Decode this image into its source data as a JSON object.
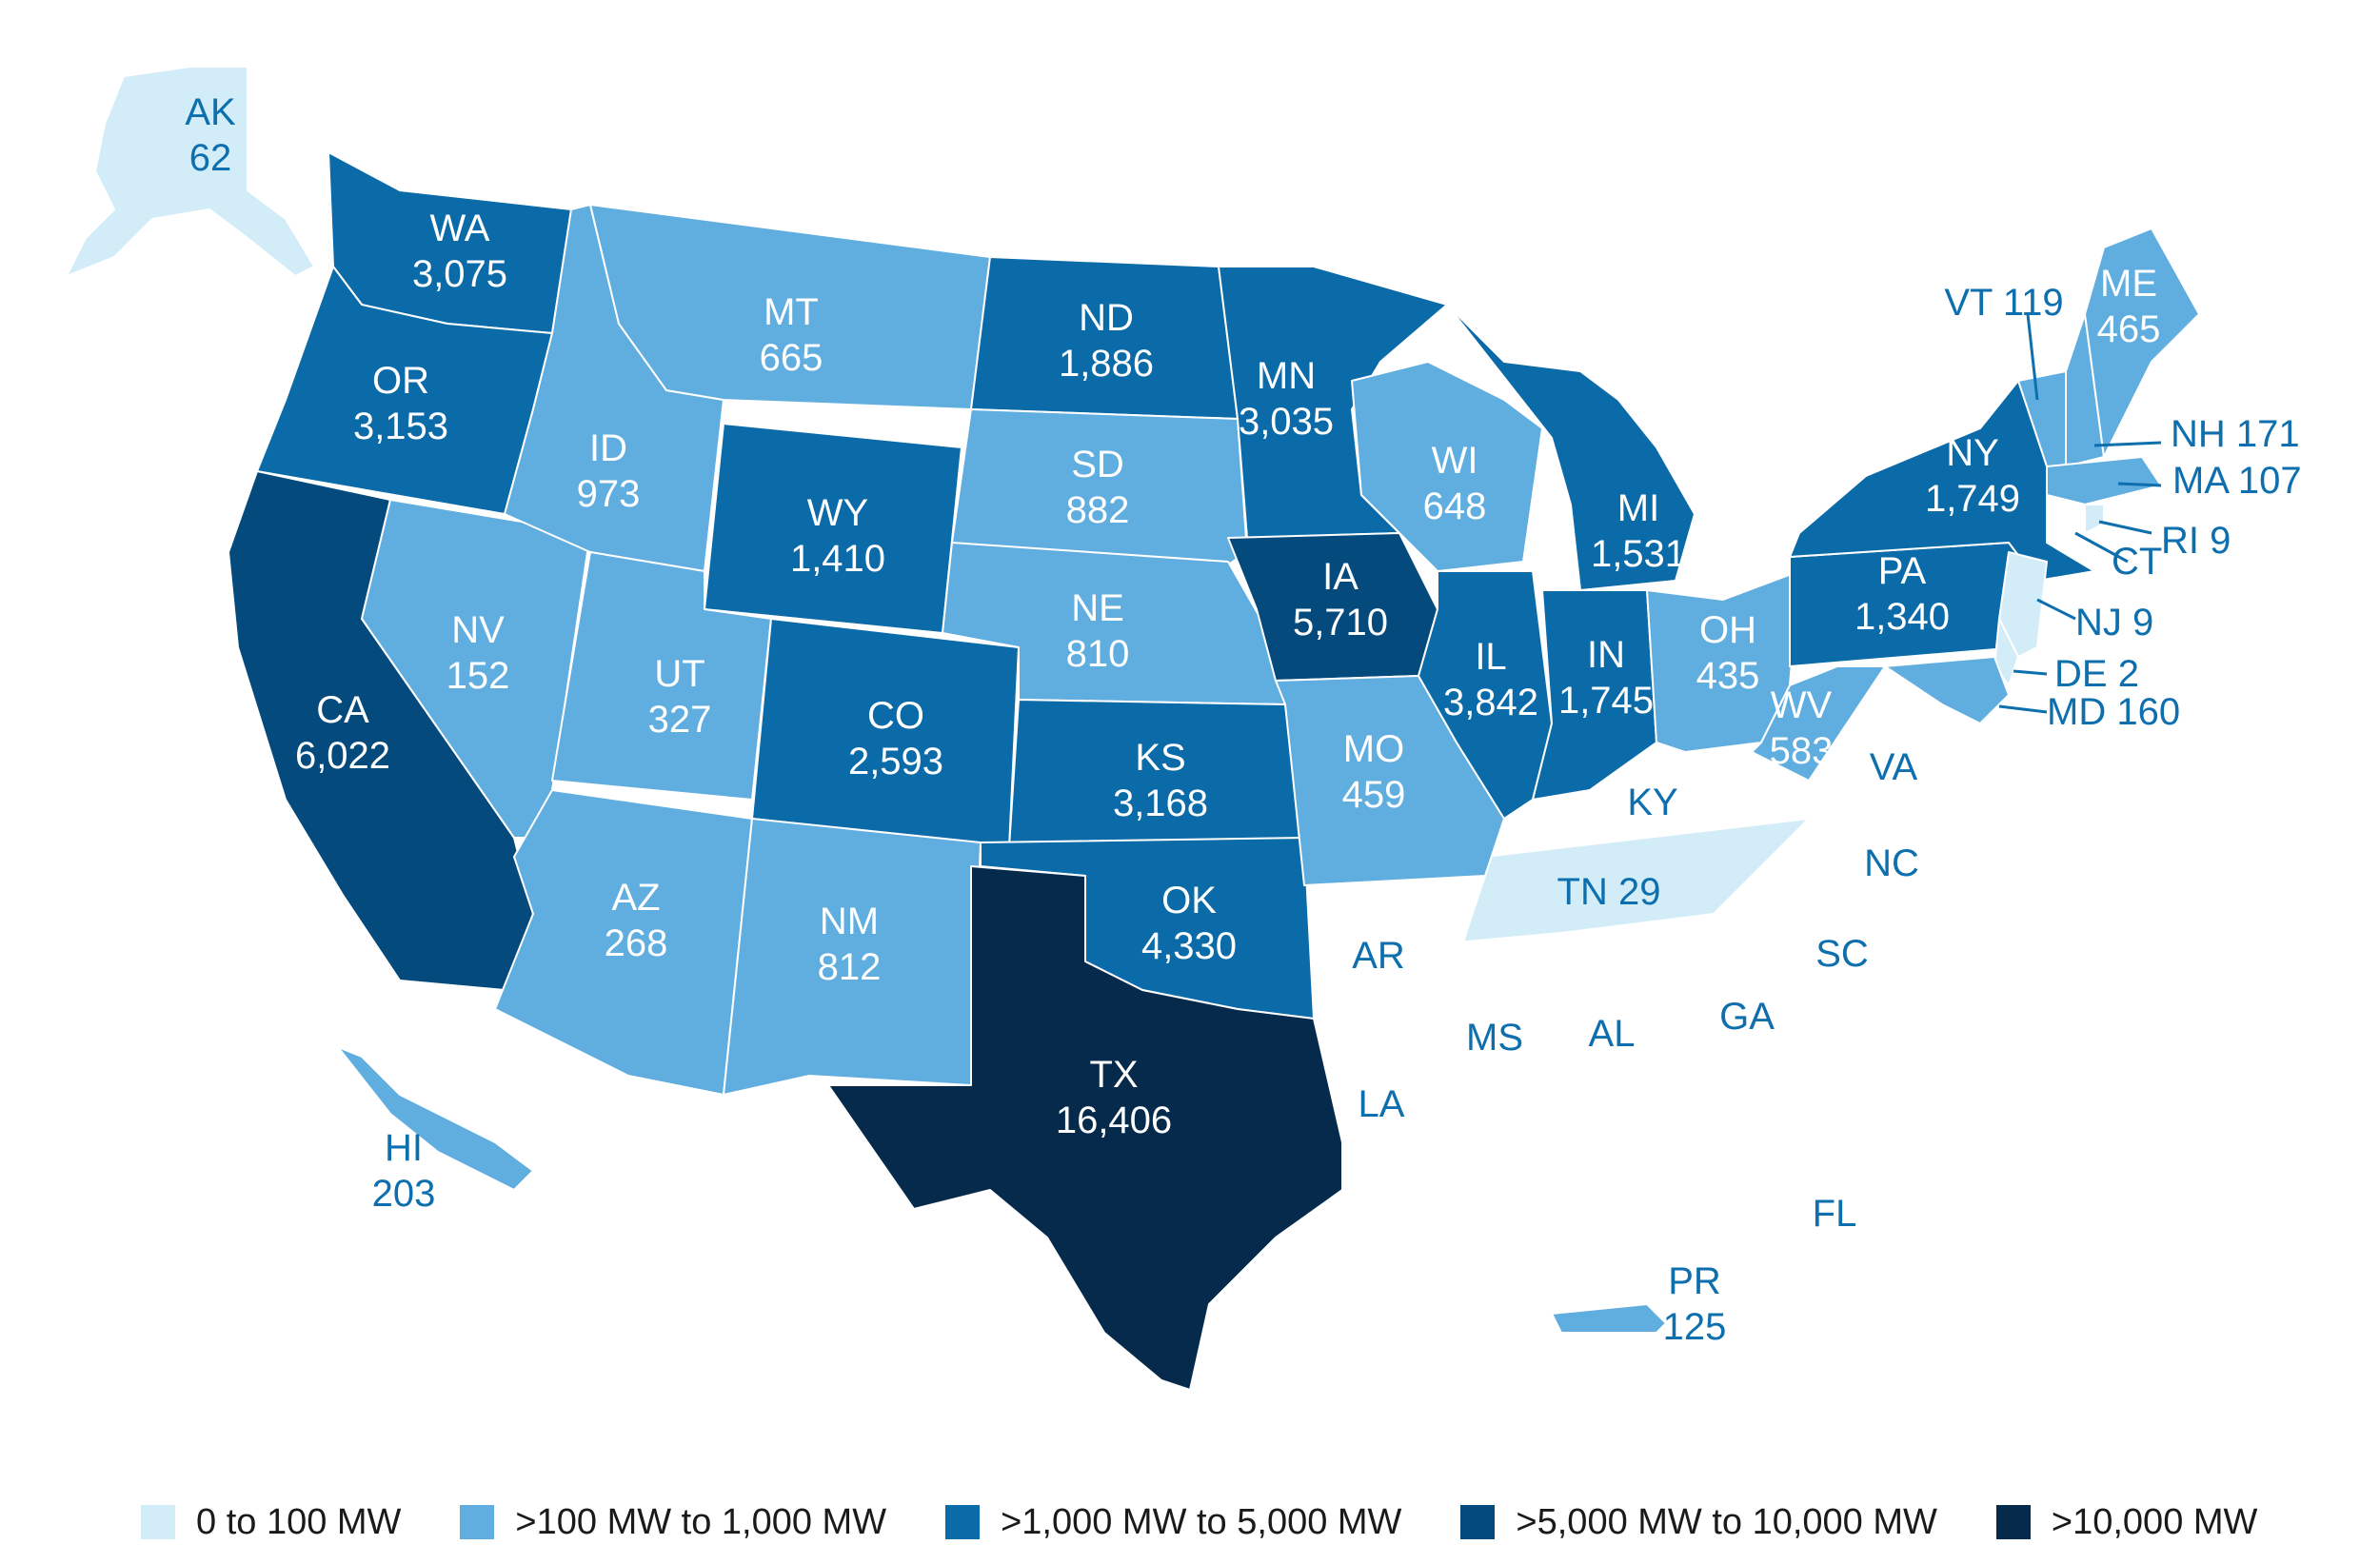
{
  "colors": {
    "none": "#ffffff",
    "tier1": "#d2ecf8",
    "tier2": "#60addf",
    "tier3": "#0b6aa8",
    "tier4": "#054a7c",
    "tier5": "#052a4c",
    "label_dark": "#0d6fae"
  },
  "legend": [
    {
      "label": "0 to 100 MW",
      "tier": "tier1"
    },
    {
      "label": ">100 MW to 1,000 MW",
      "tier": "tier2"
    },
    {
      "label": ">1,000 MW to 5,000 MW",
      "tier": "tier3"
    },
    {
      "label": ">5,000 MW to 10,000 MW",
      "tier": "tier4"
    },
    {
      "label": ">10,000 MW",
      "tier": "tier5"
    }
  ],
  "states": {
    "AK": {
      "abbr": "AK",
      "value": "62",
      "tier": "tier1"
    },
    "WA": {
      "abbr": "WA",
      "value": "3,075",
      "tier": "tier3"
    },
    "OR": {
      "abbr": "OR",
      "value": "3,153",
      "tier": "tier3"
    },
    "CA": {
      "abbr": "CA",
      "value": "6,022",
      "tier": "tier4"
    },
    "NV": {
      "abbr": "NV",
      "value": "152",
      "tier": "tier2"
    },
    "ID": {
      "abbr": "ID",
      "value": "973",
      "tier": "tier2"
    },
    "MT": {
      "abbr": "MT",
      "value": "665",
      "tier": "tier2"
    },
    "WY": {
      "abbr": "WY",
      "value": "1,410",
      "tier": "tier3"
    },
    "UT": {
      "abbr": "UT",
      "value": "327",
      "tier": "tier2"
    },
    "AZ": {
      "abbr": "AZ",
      "value": "268",
      "tier": "tier2"
    },
    "CO": {
      "abbr": "CO",
      "value": "2,593",
      "tier": "tier3"
    },
    "NM": {
      "abbr": "NM",
      "value": "812",
      "tier": "tier2"
    },
    "ND": {
      "abbr": "ND",
      "value": "1,886",
      "tier": "tier3"
    },
    "SD": {
      "abbr": "SD",
      "value": "882",
      "tier": "tier2"
    },
    "NE": {
      "abbr": "NE",
      "value": "810",
      "tier": "tier2"
    },
    "KS": {
      "abbr": "KS",
      "value": "3,168",
      "tier": "tier3"
    },
    "OK": {
      "abbr": "OK",
      "value": "4,330",
      "tier": "tier3"
    },
    "TX": {
      "abbr": "TX",
      "value": "16,406",
      "tier": "tier5"
    },
    "MN": {
      "abbr": "MN",
      "value": "3,035",
      "tier": "tier3"
    },
    "IA": {
      "abbr": "IA",
      "value": "5,710",
      "tier": "tier4"
    },
    "MO": {
      "abbr": "MO",
      "value": "459",
      "tier": "tier2"
    },
    "WI": {
      "abbr": "WI",
      "value": "648",
      "tier": "tier2"
    },
    "IL": {
      "abbr": "IL",
      "value": "3,842",
      "tier": "tier3"
    },
    "MI": {
      "abbr": "MI",
      "value": "1,531",
      "tier": "tier3"
    },
    "IN": {
      "abbr": "IN",
      "value": "1,745",
      "tier": "tier3"
    },
    "OH": {
      "abbr": "OH",
      "value": "435",
      "tier": "tier2"
    },
    "WV": {
      "abbr": "WV",
      "value": "583",
      "tier": "tier2"
    },
    "PA": {
      "abbr": "PA",
      "value": "1,340",
      "tier": "tier3"
    },
    "NY": {
      "abbr": "NY",
      "value": "1,749",
      "tier": "tier3"
    },
    "VT": {
      "abbr": "VT",
      "value": "119",
      "tier": "tier2"
    },
    "NH": {
      "abbr": "NH",
      "value": "171",
      "tier": "tier2"
    },
    "ME": {
      "abbr": "ME",
      "value": "465",
      "tier": "tier2"
    },
    "MA": {
      "abbr": "MA",
      "value": "107",
      "tier": "tier2"
    },
    "RI": {
      "abbr": "RI",
      "value": "9",
      "tier": "tier1"
    },
    "CT": {
      "abbr": "CT",
      "value": "",
      "tier": "none"
    },
    "NJ": {
      "abbr": "NJ",
      "value": "9",
      "tier": "tier1"
    },
    "DE": {
      "abbr": "DE",
      "value": "2",
      "tier": "tier1"
    },
    "MD": {
      "abbr": "MD",
      "value": "160",
      "tier": "tier2"
    },
    "TN": {
      "abbr": "TN",
      "value": "29",
      "tier": "tier1"
    },
    "HI": {
      "abbr": "HI",
      "value": "203",
      "tier": "tier2"
    },
    "PR": {
      "abbr": "PR",
      "value": "125",
      "tier": "tier2"
    },
    "KY": {
      "abbr": "KY",
      "value": "",
      "tier": "none"
    },
    "VA": {
      "abbr": "VA",
      "value": "",
      "tier": "none"
    },
    "NC": {
      "abbr": "NC",
      "value": "",
      "tier": "none"
    },
    "SC": {
      "abbr": "SC",
      "value": "",
      "tier": "none"
    },
    "GA": {
      "abbr": "GA",
      "value": "",
      "tier": "none"
    },
    "AL": {
      "abbr": "AL",
      "value": "",
      "tier": "none"
    },
    "MS": {
      "abbr": "MS",
      "value": "",
      "tier": "none"
    },
    "AR": {
      "abbr": "AR",
      "value": "",
      "tier": "none"
    },
    "LA": {
      "abbr": "LA",
      "value": "",
      "tier": "none"
    },
    "FL": {
      "abbr": "FL",
      "value": "",
      "tier": "none"
    }
  }
}
